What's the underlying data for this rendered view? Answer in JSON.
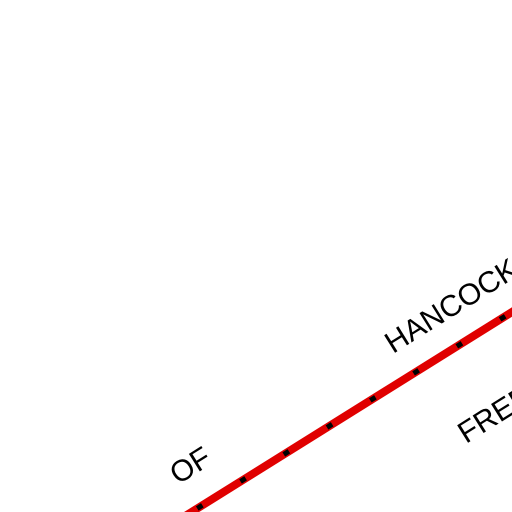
{
  "map": {
    "background_color": "#ffffff",
    "boundary": {
      "casing_color": "#e00000",
      "dash_color": "#000000"
    },
    "labels": {
      "upper_left": "OF",
      "upper_right": "HANCOCK",
      "lower_right": "FREDERICK"
    }
  }
}
